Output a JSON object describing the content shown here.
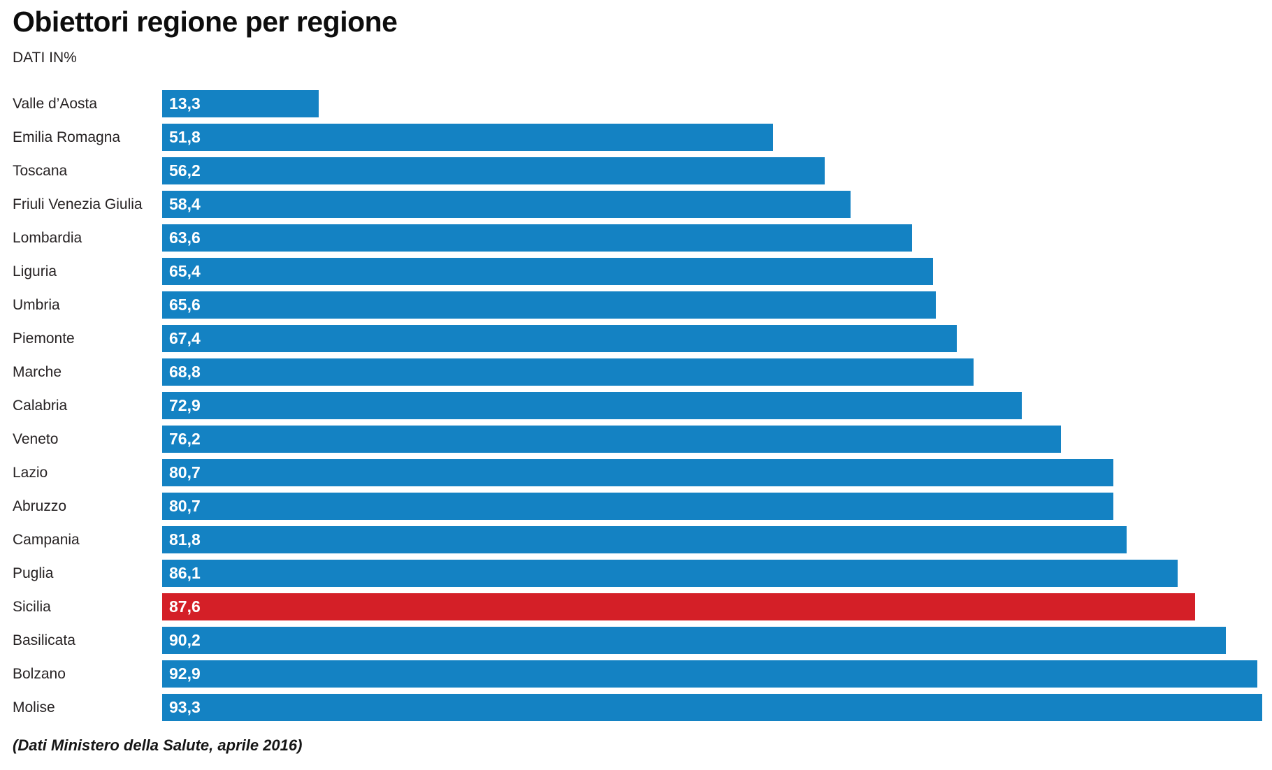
{
  "title": "Obiettori regione per regione",
  "subtitle": "DATI IN%",
  "source_note": "(Dati Ministero della Salute, aprile 2016)",
  "colors": {
    "bar_blue": "#1482c3",
    "bar_red": "#d41f27",
    "text_dark": "#231f20",
    "value_text": "#ffffff"
  },
  "chart_data": {
    "type": "bar",
    "orientation": "horizontal",
    "title": "Obiettori regione per regione",
    "subtitle": "DATI IN%",
    "unit": "percent",
    "xlim": [
      0,
      93.3
    ],
    "grid": false,
    "legend": false,
    "value_label_position": "inside-left",
    "highlighted_category": "Sicilia",
    "highlight_color": "#d41f27",
    "bar_color": "#1482c3",
    "categories": [
      "Valle d’Aosta",
      "Emilia Romagna",
      "Toscana",
      "Friuli Venezia Giulia",
      "Lombardia",
      "Liguria",
      "Umbria",
      "Piemonte",
      "Marche",
      "Calabria",
      "Veneto",
      "Lazio",
      "Abruzzo",
      "Campania",
      "Puglia",
      "Sicilia",
      "Basilicata",
      "Bolzano",
      "Molise"
    ],
    "values": [
      13.3,
      51.8,
      56.2,
      58.4,
      63.6,
      65.4,
      65.6,
      67.4,
      68.8,
      72.9,
      76.2,
      80.7,
      80.7,
      81.8,
      86.1,
      87.6,
      90.2,
      92.9,
      93.3
    ],
    "value_labels": [
      "13,3",
      "51,8",
      "56,2",
      "58,4",
      "63,6",
      "65,4",
      "65,6",
      "67,4",
      "68,8",
      "72,9",
      "76,2",
      "80,7",
      "80,7",
      "81,8",
      "86,1",
      "87,6",
      "90,2",
      "92,9",
      "93,3"
    ],
    "source": "(Dati Ministero della Salute, aprile 2016)"
  }
}
